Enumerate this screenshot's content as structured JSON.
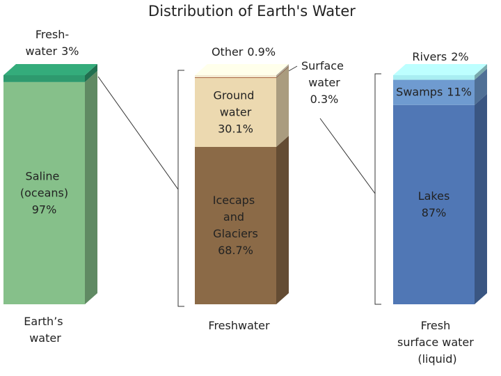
{
  "chart_data": {
    "type": "stacked-column-3d",
    "title": "Distribution of Earth's Water",
    "ylim": [
      0,
      100
    ],
    "bars": [
      {
        "label": "Earth’s water",
        "segments": [
          {
            "name": "Saline (oceans)",
            "value": 97,
            "value_label": "97%",
            "color": "#86c08a"
          },
          {
            "name": "Fresh-water",
            "value": 3,
            "value_label": "3%",
            "color": "#2e9a6e"
          }
        ]
      },
      {
        "label": "Freshwater",
        "segments": [
          {
            "name": "Icecaps and Glaciers",
            "value": 68.7,
            "value_label": "68.7%",
            "color": "#8b6a47"
          },
          {
            "name": "Ground water",
            "value": 30.1,
            "value_label": "30.1%",
            "color": "#ecd9b0"
          },
          {
            "name": "Surface water",
            "value": 0.3,
            "value_label": "0.3%",
            "color": "#a5603c"
          },
          {
            "name": "Other",
            "value": 0.9,
            "value_label": "0.9%",
            "color": "#f3ead2"
          }
        ]
      },
      {
        "label": "Fresh surface water (liquid)",
        "segments": [
          {
            "name": "Lakes",
            "value": 87,
            "value_label": "87%",
            "color": "#5077b5"
          },
          {
            "name": "Swamps",
            "value": 11,
            "value_label": "11%",
            "color": "#6f9bd0"
          },
          {
            "name": "Rivers",
            "value": 2,
            "value_label": "2%",
            "color": "#a9eef2"
          }
        ]
      }
    ]
  }
}
